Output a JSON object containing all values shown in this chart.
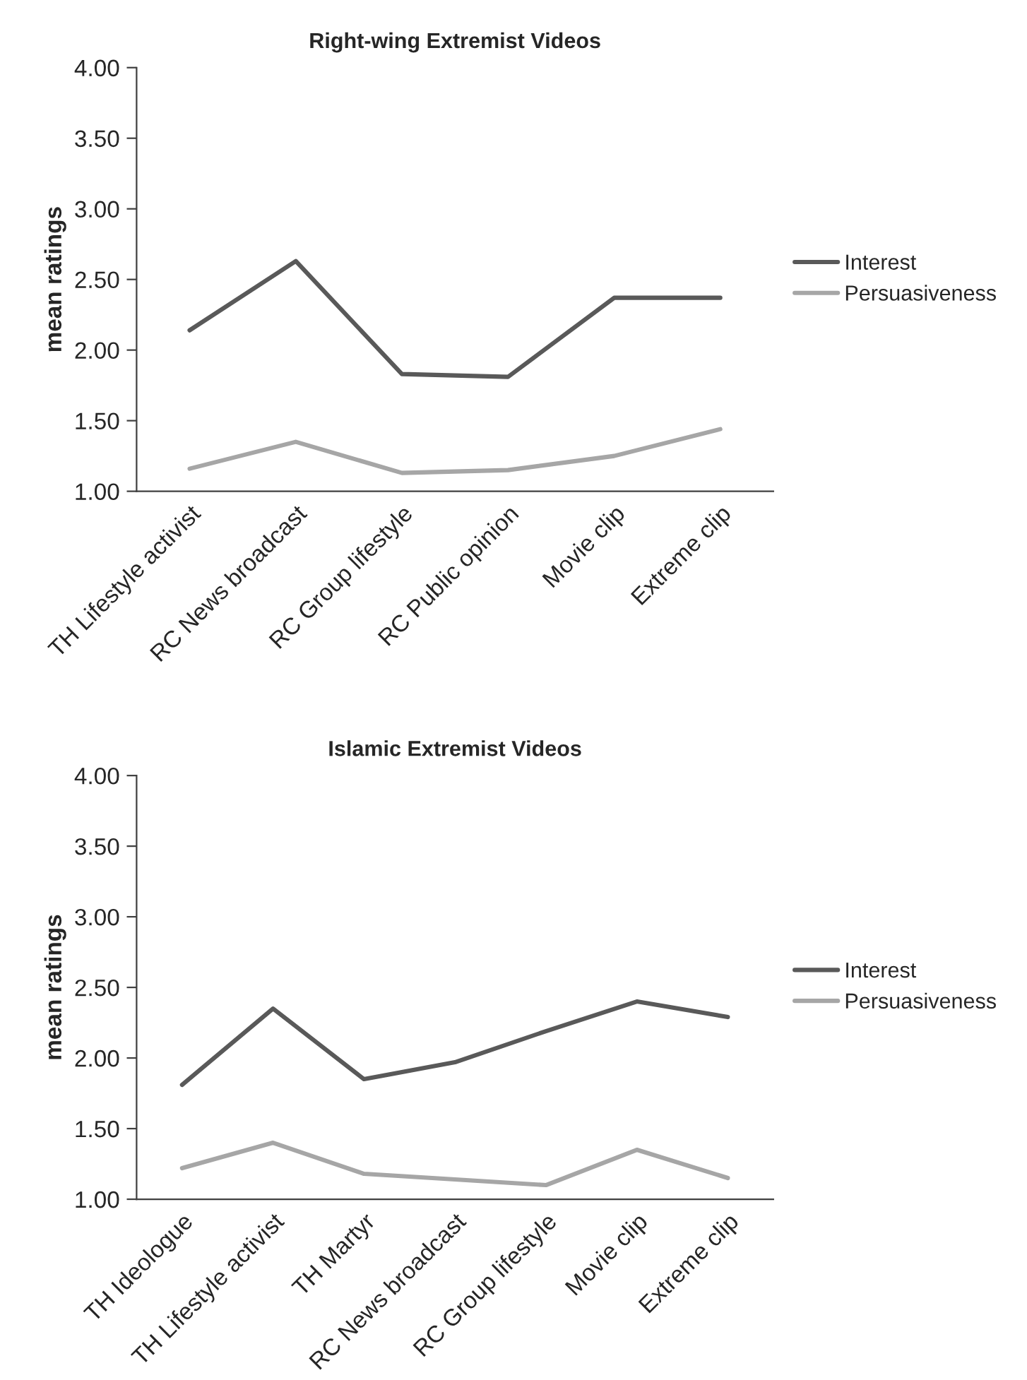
{
  "chart_data": [
    {
      "type": "line",
      "title": "Right-wing Extremist Videos",
      "ylabel": "mean ratings",
      "categories": [
        "TH Lifestyle activist",
        "RC News broadcast",
        "RC Group lifestyle",
        "RC Public opinion",
        "Movie clip",
        "Extreme clip"
      ],
      "series": [
        {
          "name": "Interest",
          "color": "#595959",
          "values": [
            2.14,
            2.63,
            1.83,
            1.81,
            2.37,
            2.37
          ]
        },
        {
          "name": "Persuasiveness",
          "color": "#a6a6a6",
          "values": [
            1.16,
            1.35,
            1.13,
            1.15,
            1.25,
            1.44
          ]
        }
      ],
      "ylim": [
        1.0,
        4.0
      ],
      "yticks": [
        {
          "value": 1.0,
          "label": "1.00"
        },
        {
          "value": 1.5,
          "label": "1.50"
        },
        {
          "value": 2.0,
          "label": "2.00"
        },
        {
          "value": 2.5,
          "label": "2.50"
        },
        {
          "value": 3.0,
          "label": "3.00"
        },
        {
          "value": 3.5,
          "label": "3.50"
        },
        {
          "value": 4.0,
          "label": "4.00"
        }
      ],
      "grid": false,
      "legend": "right",
      "marker": "none",
      "line_style": "solid"
    },
    {
      "type": "line",
      "title": "Islamic Extremist Videos",
      "ylabel": "mean ratings",
      "categories": [
        "TH Ideologue",
        "TH Lifestyle activist",
        "TH Martyr",
        "RC News broadcast",
        "RC Group lifestyle",
        "Movie clip",
        "Extreme clip"
      ],
      "series": [
        {
          "name": "Interest",
          "color": "#595959",
          "values": [
            1.81,
            2.35,
            1.85,
            1.97,
            2.19,
            2.4,
            2.29
          ]
        },
        {
          "name": "Persuasiveness",
          "color": "#a6a6a6",
          "values": [
            1.22,
            1.4,
            1.18,
            1.14,
            1.1,
            1.35,
            1.15
          ]
        }
      ],
      "ylim": [
        1.0,
        4.0
      ],
      "yticks": [
        {
          "value": 1.0,
          "label": "1.00"
        },
        {
          "value": 1.5,
          "label": "1.50"
        },
        {
          "value": 2.0,
          "label": "2.00"
        },
        {
          "value": 2.5,
          "label": "2.50"
        },
        {
          "value": 3.0,
          "label": "3.00"
        },
        {
          "value": 3.5,
          "label": "3.50"
        },
        {
          "value": 4.0,
          "label": "4.00"
        }
      ],
      "grid": false,
      "legend": "right",
      "marker": "none",
      "line_style": "solid"
    }
  ]
}
